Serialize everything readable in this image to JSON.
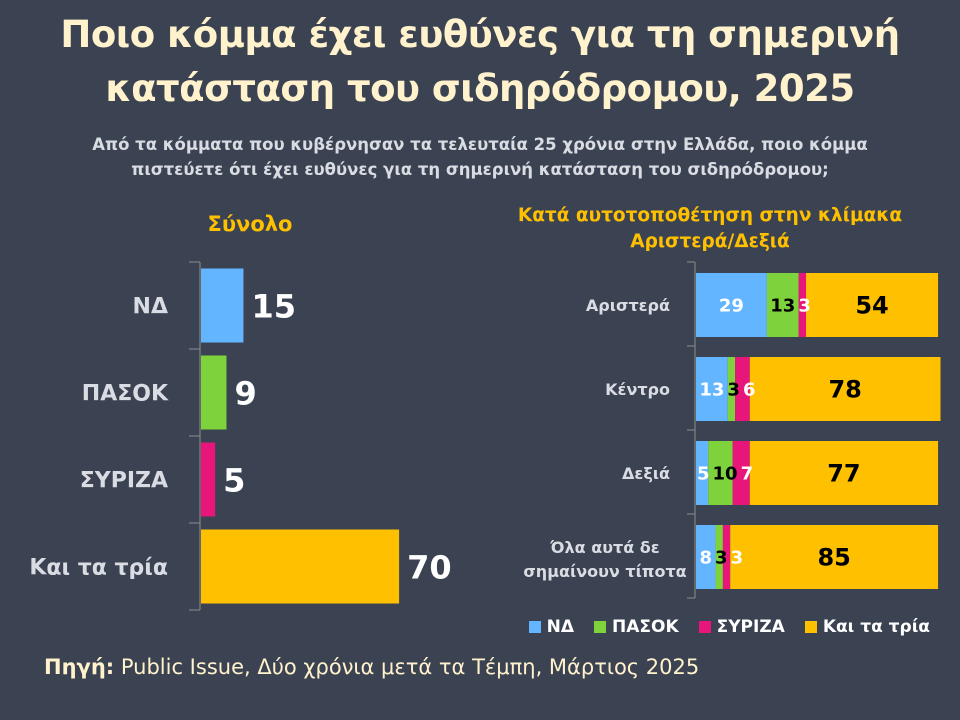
{
  "title_line1": "Ποιο κόμμα έχει ευθύνες για τη σημερινή",
  "title_line2": "κατάσταση του σιδηρόδρομου, 2025",
  "subtitle_line1": "Από τα κόμματα που κυβέρνησαν τα τελευταία 25 χρόνια στην Ελλάδα, ποιο κόμμα",
  "subtitle_line2": "πιστεύετε ότι έχει ευθύνες για τη σημερινή κατάσταση του σιδηρόδρομου;",
  "source_label": "Πηγή:",
  "source_text": " Public Issue, Δύο χρόνια μετά τα Τέμπη, Μάρτιος 2025",
  "colors": {
    "background": "#3b4352",
    "ND": "#63b5ff",
    "PASOK": "#7ed33c",
    "SYRIZA": "#e8157a",
    "ALL": "#ffc000"
  },
  "legend": [
    {
      "label": "ΝΔ",
      "color": "#63b5ff"
    },
    {
      "label": "ΠΑΣΟΚ",
      "color": "#7ed33c"
    },
    {
      "label": "ΣΥΡΙΖΑ",
      "color": "#e8157a"
    },
    {
      "label": "Και τα τρία",
      "color": "#ffc000"
    }
  ],
  "chart_data": [
    {
      "type": "bar",
      "orientation": "horizontal",
      "title": "Σύνολο",
      "categories": [
        "ΝΔ",
        "ΠΑΣΟΚ",
        "ΣΥΡΙΖΑ",
        "Και τα τρία"
      ],
      "values": [
        15,
        9,
        5,
        70
      ],
      "colors": [
        "#63b5ff",
        "#7ed33c",
        "#e8157a",
        "#ffc000"
      ],
      "xlabel": "",
      "ylabel": "",
      "xlim": [
        0,
        100
      ],
      "grid": false
    },
    {
      "type": "bar",
      "orientation": "horizontal",
      "stacked": true,
      "title": "Κατά αυτοτοποθέτηση στην κλίμακα Αριστερά/Δεξιά",
      "categories": [
        "Αριστερά",
        "Κέντρο",
        "Δεξιά",
        "Όλα αυτά δε σημαίνουν τίποτα"
      ],
      "series": [
        {
          "name": "ΝΔ",
          "color": "#63b5ff",
          "label_color": "#ffffff",
          "values": [
            29,
            13,
            5,
            8
          ]
        },
        {
          "name": "ΠΑΣΟΚ",
          "color": "#7ed33c",
          "label_color": "#000000",
          "values": [
            13,
            3,
            10,
            3
          ]
        },
        {
          "name": "ΣΥΡΙΖΑ",
          "color": "#e8157a",
          "label_color": "#ffffff",
          "values": [
            3,
            6,
            7,
            3
          ]
        },
        {
          "name": "Και τα τρία",
          "color": "#ffc000",
          "label_color": "#000000",
          "values": [
            54,
            78,
            77,
            85
          ]
        }
      ],
      "legend": "bottom-right",
      "grid": false
    }
  ]
}
